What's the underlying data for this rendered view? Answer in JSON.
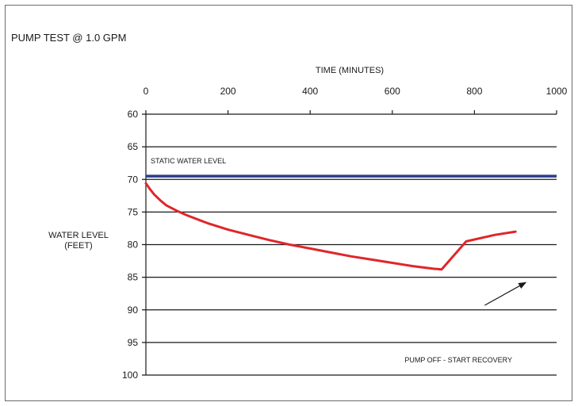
{
  "chart_data": {
    "type": "line",
    "title": "PUMP TEST @ 1.0 GPM",
    "xlabel": "TIME (MINUTES)",
    "ylabel_lines": [
      "WATER LEVEL",
      "(FEET)"
    ],
    "x_ticks": [
      "0",
      "200",
      "400",
      "600",
      "800",
      "1000"
    ],
    "y_ticks": [
      "60",
      "65",
      "70",
      "75",
      "80",
      "85",
      "90",
      "95",
      "100"
    ],
    "xlim": [
      0,
      1000
    ],
    "ylim": [
      60,
      100
    ],
    "y_inverted": true,
    "x_axis_position": "top",
    "grid": "horizontal",
    "static_level": {
      "label": "STATIC WATER LEVEL",
      "value": 69.5,
      "color": "#2a3d8f"
    },
    "series": [
      {
        "color": "#e0262a",
        "x": [
          0,
          10,
          20,
          35,
          50,
          75,
          100,
          150,
          200,
          250,
          300,
          350,
          400,
          450,
          500,
          550,
          600,
          650,
          700,
          720,
          780,
          850,
          900
        ],
        "y": [
          70.6,
          71.5,
          72.3,
          73.2,
          74.0,
          74.8,
          75.5,
          76.7,
          77.7,
          78.5,
          79.3,
          80.0,
          80.6,
          81.2,
          81.8,
          82.3,
          82.8,
          83.3,
          83.7,
          83.8,
          79.5,
          78.5,
          78.0
        ]
      }
    ],
    "annotations": [
      {
        "text": "PUMP OFF - START RECOVERY",
        "x": 630,
        "y": 97.7,
        "arrow_from": [
          825,
          89.3
        ],
        "arrow_to": [
          925,
          85.8
        ]
      }
    ]
  }
}
